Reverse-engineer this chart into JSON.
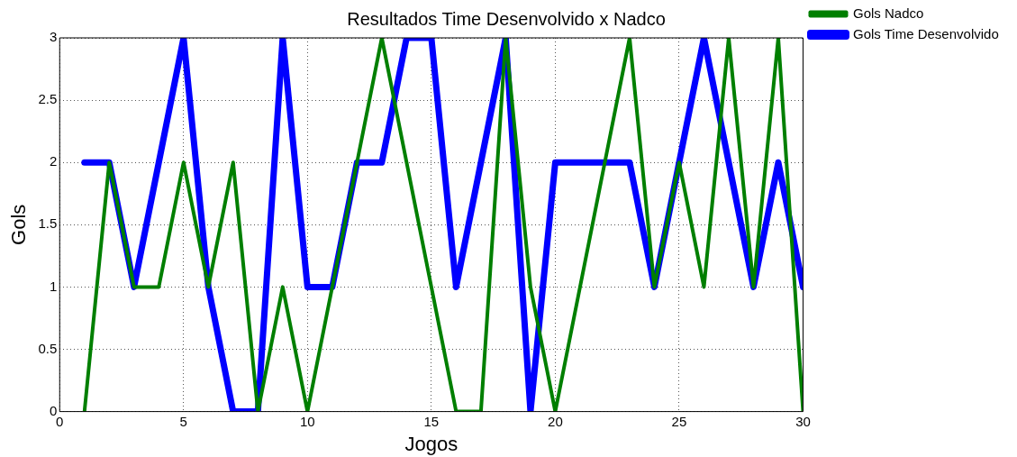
{
  "chart_data": {
    "type": "line",
    "title": "Resultados Time Desenvolvido x Nadco",
    "xlabel": "Jogos",
    "ylabel": "Gols",
    "x": [
      1,
      2,
      3,
      4,
      5,
      6,
      7,
      8,
      9,
      10,
      11,
      12,
      13,
      14,
      15,
      16,
      17,
      18,
      19,
      20,
      21,
      22,
      23,
      24,
      25,
      26,
      27,
      28,
      29,
      30
    ],
    "series": [
      {
        "name": "Gols Time Desenvolvido",
        "color": "#0000ff",
        "values": [
          2,
          2,
          1,
          2,
          3,
          1,
          0,
          0,
          3,
          1,
          1,
          2,
          2,
          3,
          3,
          1,
          2,
          3,
          0,
          2,
          2,
          2,
          2,
          1,
          2,
          3,
          2,
          1,
          2,
          1
        ]
      },
      {
        "name": "Gols Nadco",
        "color": "#007f00",
        "values": [
          0,
          2,
          1,
          1,
          2,
          1,
          2,
          0,
          1,
          0,
          1,
          2,
          3,
          2,
          1,
          0,
          0,
          3,
          1,
          0,
          1,
          2,
          3,
          1,
          2,
          1,
          3,
          1,
          3,
          0
        ]
      }
    ],
    "xlim": [
      0,
      30
    ],
    "xticks": [
      0,
      5,
      10,
      15,
      20,
      25,
      30
    ],
    "ylim": [
      0,
      3
    ],
    "yticks": [
      0,
      0.5,
      1,
      1.5,
      2,
      2.5,
      3
    ],
    "grid": true,
    "legend": "top right",
    "marker": "none",
    "line_style": "solid"
  }
}
